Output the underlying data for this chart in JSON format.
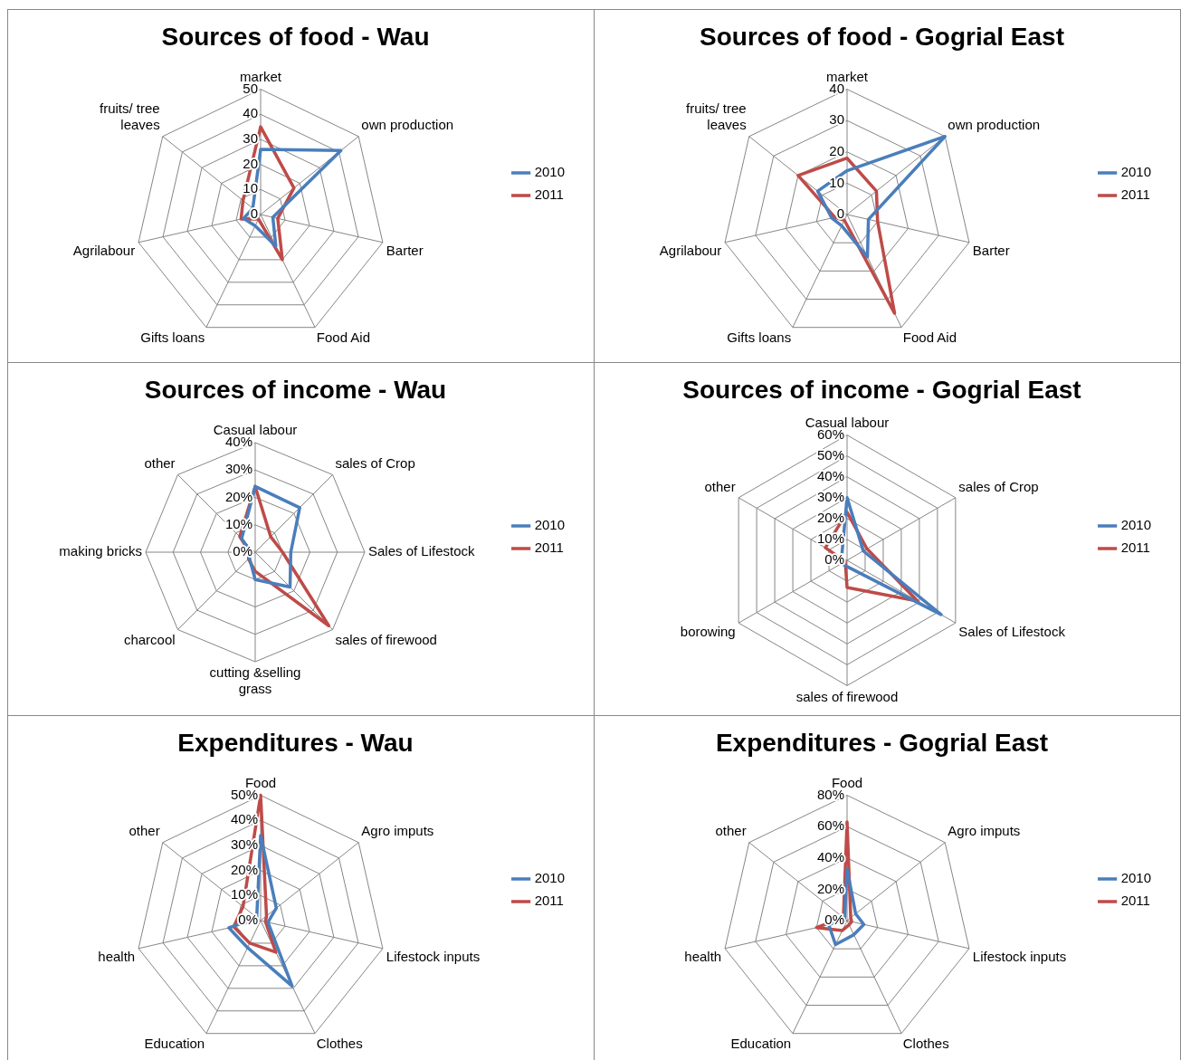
{
  "chart_data": [
    {
      "type": "radar",
      "title": "Sources of food - Wau",
      "categories": [
        "market",
        "own production",
        "Barter",
        "Food Aid",
        "Gifts loans",
        "Agrilabour",
        "fruits/ tree\nleaves"
      ],
      "ylim": [
        0,
        50
      ],
      "yticks": [
        0,
        10,
        20,
        30,
        40,
        50
      ],
      "grid": true,
      "legend": "right",
      "marker": "none",
      "series": [
        {
          "name": "2010",
          "color": "#4a7ebb",
          "values": [
            26,
            41,
            5,
            14,
            5,
            7,
            4
          ]
        },
        {
          "name": "2011",
          "color": "#be4b48",
          "values": [
            35,
            17,
            7,
            20,
            2,
            8,
            9
          ]
        }
      ]
    },
    {
      "type": "radar",
      "title": "Sources of food - Gogrial East",
      "categories": [
        "market",
        "own production",
        "Barter",
        "Food Aid",
        "Gifts loans",
        "Agrilabour",
        "fruits/ tree\nleaves"
      ],
      "ylim": [
        0,
        40
      ],
      "yticks": [
        0,
        10,
        20,
        30,
        40
      ],
      "grid": true,
      "legend": "right",
      "marker": "none",
      "series": [
        {
          "name": "2010",
          "color": "#4a7ebb",
          "values": [
            14,
            40,
            7,
            15,
            4,
            5,
            12
          ]
        },
        {
          "name": "2011",
          "color": "#be4b48",
          "values": [
            18,
            12,
            10,
            35,
            2,
            4,
            20
          ]
        }
      ]
    },
    {
      "type": "radar",
      "title": "Sources of income - Wau",
      "categories": [
        "Casual labour",
        "sales of Crop",
        "Sales of Lifestock",
        "sales of firewood",
        "cutting &selling\ngrass",
        "charcool",
        "making bricks",
        "other"
      ],
      "ylim": [
        0,
        40
      ],
      "yticks": [
        {
          "value": 0,
          "label": "0%"
        },
        {
          "value": 10,
          "label": "10%"
        },
        {
          "value": 20,
          "label": "20%"
        },
        {
          "value": 30,
          "label": "30%"
        },
        {
          "value": 40,
          "label": "40%"
        }
      ],
      "grid": true,
      "legend": "right",
      "marker": "none",
      "series": [
        {
          "name": "2010",
          "color": "#4a7ebb",
          "values": [
            24,
            23,
            13,
            18,
            10,
            3,
            1.5,
            7
          ]
        },
        {
          "name": "2011",
          "color": "#be4b48",
          "values": [
            24,
            8,
            10,
            38,
            7,
            3.5,
            2,
            8
          ]
        }
      ]
    },
    {
      "type": "radar",
      "title": "Sources of income - Gogrial East",
      "categories": [
        "Casual labour",
        "sales of Crop",
        "Sales of Lifestock",
        "sales of firewood",
        "borowing",
        "other"
      ],
      "ylim": [
        0,
        60
      ],
      "yticks": [
        {
          "value": 0,
          "label": "0%"
        },
        {
          "value": 10,
          "label": "10%"
        },
        {
          "value": 20,
          "label": "20%"
        },
        {
          "value": 30,
          "label": "30%"
        },
        {
          "value": 40,
          "label": "40%"
        },
        {
          "value": 50,
          "label": "50%"
        },
        {
          "value": 60,
          "label": "60%"
        }
      ],
      "grid": true,
      "legend": "right",
      "marker": "none",
      "series": [
        {
          "name": "2010",
          "color": "#4a7ebb",
          "values": [
            30,
            9,
            52,
            3,
            3,
            3
          ]
        },
        {
          "name": "2011",
          "color": "#be4b48",
          "values": [
            23,
            11,
            39,
            13,
            1,
            12
          ]
        }
      ]
    },
    {
      "type": "radar",
      "title": "Expenditures - Wau",
      "categories": [
        "Food",
        "Agro imputs",
        "Lifestock inputs",
        "Clothes",
        "Education",
        "health",
        "other"
      ],
      "ylim": [
        0,
        50
      ],
      "yticks": [
        {
          "value": 0,
          "label": "0%"
        },
        {
          "value": 10,
          "label": "10%"
        },
        {
          "value": 20,
          "label": "20%"
        },
        {
          "value": 30,
          "label": "30%"
        },
        {
          "value": 40,
          "label": "40%"
        },
        {
          "value": 50,
          "label": "50%"
        }
      ],
      "grid": true,
      "legend": "right",
      "marker": "none",
      "series": [
        {
          "name": "2010",
          "color": "#4a7ebb",
          "values": [
            34,
            8,
            3,
            29,
            12,
            13,
            2
          ]
        },
        {
          "name": "2011",
          "color": "#be4b48",
          "values": [
            50,
            3,
            2,
            14,
            10,
            11,
            9
          ]
        }
      ]
    },
    {
      "type": "radar",
      "title": "Expenditures - Gogrial East",
      "categories": [
        "Food",
        "Agro imputs",
        "Lifestock inputs",
        "Clothes",
        "Education",
        "health",
        "other"
      ],
      "ylim": [
        0,
        80
      ],
      "yticks": [
        {
          "value": 0,
          "label": "0%"
        },
        {
          "value": 20,
          "label": "20%"
        },
        {
          "value": 40,
          "label": "40%"
        },
        {
          "value": 60,
          "label": "60%"
        },
        {
          "value": 80,
          "label": "80%"
        }
      ],
      "grid": true,
      "legend": "right",
      "marker": "none",
      "series": [
        {
          "name": "2010",
          "color": "#4a7ebb",
          "values": [
            33,
            7,
            11,
            10,
            17,
            12,
            2
          ]
        },
        {
          "name": "2011",
          "color": "#be4b48",
          "values": [
            63,
            3,
            3,
            3,
            7,
            20,
            3
          ]
        }
      ]
    }
  ]
}
